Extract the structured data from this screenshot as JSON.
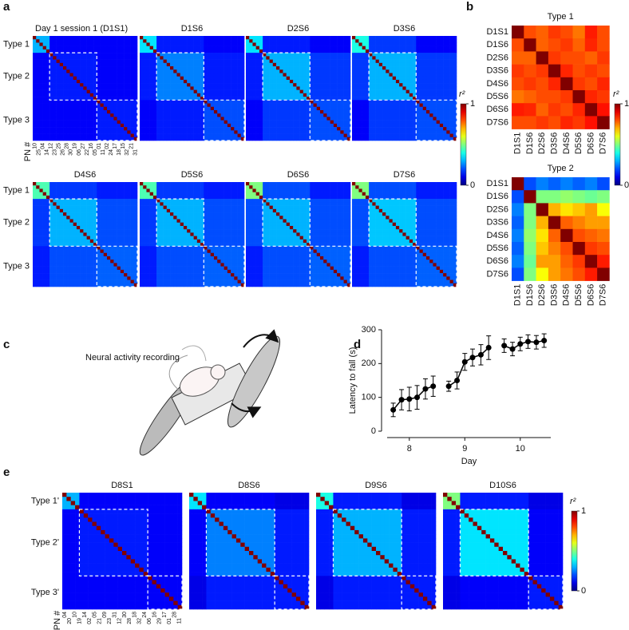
{
  "chart_data": [
    {
      "type": "heatmap-panel",
      "label": "a",
      "n": 31,
      "group_sizes": [
        5,
        14,
        12
      ],
      "row_labels": [
        "Type 1",
        "Type 2",
        "Type 3"
      ],
      "pn_label": "PN #",
      "pn_ids": [
        "10",
        "25",
        "04",
        "14",
        "12",
        "23",
        "25",
        "26",
        "28",
        "30",
        "19",
        "06",
        "27",
        "22",
        "16",
        "05",
        "01",
        "11",
        "02",
        "24",
        "17",
        "18",
        "15",
        "32",
        "21",
        "31"
      ],
      "diagonal": 1,
      "clim": [
        0,
        1
      ],
      "maps": [
        {
          "title": "Day 1 session 1 (D1S1)",
          "block_values": [
            [
              0.3,
              0.12,
              0.12
            ],
            [
              0.12,
              0.15,
              0.12
            ],
            [
              0.12,
              0.12,
              0.15
            ]
          ]
        },
        {
          "title": "D1S6",
          "block_values": [
            [
              0.35,
              0.15,
              0.12
            ],
            [
              0.15,
              0.25,
              0.15
            ],
            [
              0.12,
              0.15,
              0.2
            ]
          ]
        },
        {
          "title": "D2S6",
          "block_values": [
            [
              0.35,
              0.15,
              0.12
            ],
            [
              0.15,
              0.3,
              0.18
            ],
            [
              0.12,
              0.18,
              0.2
            ]
          ]
        },
        {
          "title": "D3S6",
          "block_values": [
            [
              0.4,
              0.18,
              0.12
            ],
            [
              0.18,
              0.3,
              0.18
            ],
            [
              0.12,
              0.18,
              0.2
            ]
          ]
        },
        {
          "title": "D4S6",
          "block_values": [
            [
              0.45,
              0.18,
              0.15
            ],
            [
              0.18,
              0.3,
              0.2
            ],
            [
              0.15,
              0.2,
              0.22
            ]
          ]
        },
        {
          "title": "D5S6",
          "block_values": [
            [
              0.45,
              0.18,
              0.15
            ],
            [
              0.18,
              0.3,
              0.2
            ],
            [
              0.15,
              0.2,
              0.22
            ]
          ]
        },
        {
          "title": "D6S6",
          "block_values": [
            [
              0.5,
              0.2,
              0.15
            ],
            [
              0.2,
              0.3,
              0.2
            ],
            [
              0.15,
              0.2,
              0.22
            ]
          ]
        },
        {
          "title": "D7S6",
          "block_values": [
            [
              0.5,
              0.2,
              0.15
            ],
            [
              0.2,
              0.32,
              0.2
            ],
            [
              0.15,
              0.2,
              0.22
            ]
          ]
        }
      ],
      "colorbar": {
        "label": "r²",
        "ticks": [
          0,
          1
        ]
      }
    },
    {
      "type": "matrix-panel",
      "label": "b",
      "clim": [
        0,
        1
      ],
      "categories": [
        "D1S1",
        "D1S6",
        "D2S6",
        "D3S6",
        "D4S6",
        "D5S6",
        "D6S6",
        "D7S6"
      ],
      "maps": [
        {
          "title": "Type 1",
          "values": [
            [
              1,
              0.8,
              0.78,
              0.82,
              0.8,
              0.76,
              0.85,
              0.8
            ],
            [
              0.8,
              1,
              0.78,
              0.8,
              0.82,
              0.78,
              0.84,
              0.8
            ],
            [
              0.78,
              0.78,
              1,
              0.82,
              0.8,
              0.8,
              0.78,
              0.82
            ],
            [
              0.82,
              0.8,
              0.82,
              1,
              0.84,
              0.8,
              0.82,
              0.8
            ],
            [
              0.8,
              0.82,
              0.8,
              0.84,
              1,
              0.82,
              0.8,
              0.84
            ],
            [
              0.76,
              0.78,
              0.8,
              0.8,
              0.82,
              1,
              0.84,
              0.82
            ],
            [
              0.85,
              0.84,
              0.78,
              0.82,
              0.8,
              0.84,
              1,
              0.86
            ],
            [
              0.8,
              0.8,
              0.82,
              0.8,
              0.84,
              0.82,
              0.86,
              1
            ]
          ]
        },
        {
          "title": "Type 2",
          "values": [
            [
              1,
              0.2,
              0.25,
              0.22,
              0.25,
              0.22,
              0.25,
              0.2
            ],
            [
              0.2,
              1,
              0.5,
              0.5,
              0.52,
              0.5,
              0.48,
              0.5
            ],
            [
              0.25,
              0.5,
              1,
              0.7,
              0.65,
              0.68,
              0.72,
              0.62
            ],
            [
              0.22,
              0.5,
              0.7,
              1,
              0.78,
              0.75,
              0.72,
              0.72
            ],
            [
              0.25,
              0.52,
              0.65,
              0.78,
              1,
              0.8,
              0.78,
              0.76
            ],
            [
              0.22,
              0.5,
              0.68,
              0.75,
              0.8,
              1,
              0.82,
              0.8
            ],
            [
              0.25,
              0.48,
              0.72,
              0.72,
              0.78,
              0.82,
              1,
              0.85
            ],
            [
              0.2,
              0.5,
              0.62,
              0.72,
              0.76,
              0.8,
              0.85,
              1
            ]
          ]
        }
      ],
      "colorbar": {
        "label": "r²",
        "ticks": [
          0,
          1
        ]
      }
    },
    {
      "type": "illustration",
      "label": "c",
      "annotation": "Neural activity recording"
    },
    {
      "type": "line",
      "label": "d",
      "xlabel": "Day",
      "ylabel": "Latency to fall (s)",
      "color": "#000000",
      "x": [
        7.71,
        7.86,
        8.0,
        8.14,
        8.29,
        8.43,
        null,
        8.71,
        8.86,
        9.0,
        9.14,
        9.29,
        9.43,
        null,
        9.71,
        9.86,
        10.0,
        10.14,
        10.29,
        10.43
      ],
      "values": [
        63,
        93,
        95,
        100,
        125,
        133,
        null,
        133,
        150,
        205,
        218,
        226,
        247,
        null,
        253,
        243,
        258,
        265,
        263,
        268
      ],
      "errors": [
        20,
        30,
        35,
        35,
        30,
        30,
        null,
        15,
        25,
        25,
        25,
        30,
        35,
        null,
        20,
        20,
        20,
        20,
        20,
        20
      ],
      "xlim": [
        7.6,
        10.55
      ],
      "xticks": [
        8,
        9,
        10
      ],
      "ylim": [
        0,
        300
      ],
      "yticks": [
        0,
        100,
        200,
        300
      ]
    },
    {
      "type": "heatmap-panel",
      "label": "e",
      "n": 28,
      "group_sizes": [
        4,
        16,
        8
      ],
      "row_labels": [
        "Type 1'",
        "Type 2'",
        "Type 3'"
      ],
      "pn_label": "PN #",
      "pn_ids": [
        "04",
        "20",
        "10",
        "19",
        "14",
        "02",
        "05",
        "21",
        "09",
        "23",
        "31",
        "12",
        "30",
        "28",
        "18",
        "32",
        "24",
        "06",
        "16",
        "29",
        "17",
        "01",
        "28",
        "11"
      ],
      "diagonal": 1,
      "clim": [
        0,
        1
      ],
      "maps": [
        {
          "title": "D8S1",
          "block_values": [
            [
              0.3,
              0.12,
              0.12
            ],
            [
              0.12,
              0.15,
              0.12
            ],
            [
              0.12,
              0.12,
              0.12
            ]
          ]
        },
        {
          "title": "D8S6",
          "block_values": [
            [
              0.35,
              0.12,
              0.1
            ],
            [
              0.12,
              0.25,
              0.15
            ],
            [
              0.1,
              0.15,
              0.15
            ]
          ]
        },
        {
          "title": "D9S6",
          "block_values": [
            [
              0.4,
              0.15,
              0.1
            ],
            [
              0.15,
              0.3,
              0.15
            ],
            [
              0.1,
              0.15,
              0.15
            ]
          ]
        },
        {
          "title": "D10S6",
          "block_values": [
            [
              0.5,
              0.15,
              0.1
            ],
            [
              0.15,
              0.35,
              0.12
            ],
            [
              0.1,
              0.12,
              0.15
            ]
          ]
        }
      ],
      "colorbar": {
        "label": "r²",
        "ticks": [
          0,
          1
        ]
      }
    }
  ]
}
